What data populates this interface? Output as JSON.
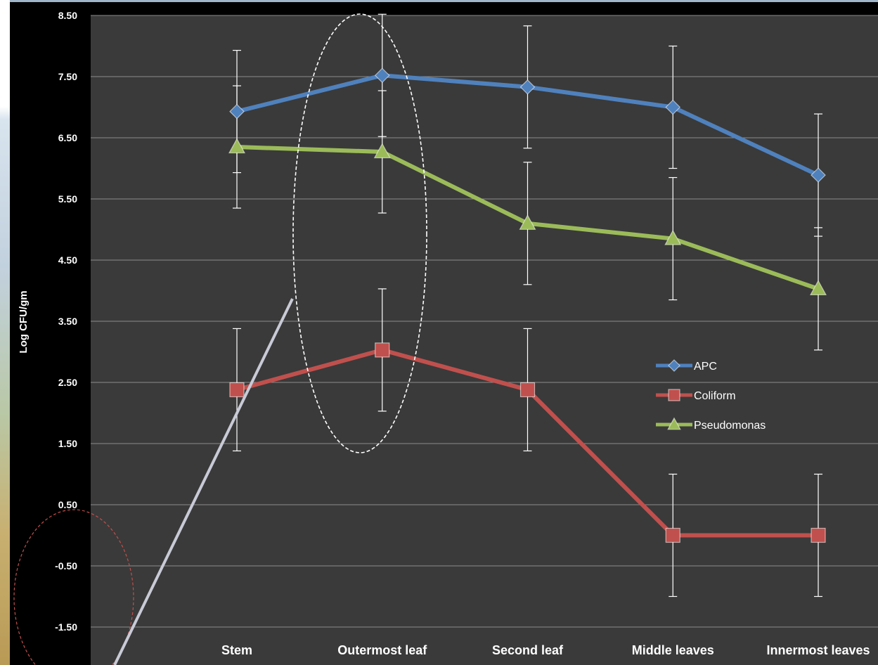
{
  "chart_data": {
    "type": "line",
    "ylabel": "Log CFU/gm",
    "xlabel": "",
    "ylim": [
      -1.5,
      8.5
    ],
    "yticks": [
      "8.50",
      "7.50",
      "6.50",
      "5.50",
      "4.50",
      "3.50",
      "2.50",
      "1.50",
      "0.50",
      "-0.50",
      "-1.50"
    ],
    "categories": [
      "Stem",
      "Outermost leaf",
      "Second  leaf",
      "Middle leaves",
      "Innermost leaves"
    ],
    "grid": true,
    "legend_position": "right",
    "series": [
      {
        "name": "APC",
        "marker": "diamond",
        "color": "#4f81bd",
        "values": [
          6.93,
          7.52,
          7.33,
          7.0,
          5.89
        ],
        "error": [
          1.0,
          1.0,
          1.0,
          1.0,
          1.0
        ]
      },
      {
        "name": "Coliform",
        "marker": "square",
        "color": "#c0504d",
        "values": [
          2.38,
          3.03,
          2.38,
          0.0,
          0.0
        ],
        "error": [
          1.0,
          1.0,
          1.0,
          1.0,
          1.0
        ]
      },
      {
        "name": "Pseudomonas",
        "marker": "triangle",
        "color": "#9bbb59",
        "values": [
          6.35,
          6.27,
          5.1,
          4.85,
          4.03
        ],
        "error": [
          1.0,
          1.0,
          1.0,
          1.0,
          1.0
        ]
      }
    ]
  },
  "colors": {
    "plot_background": "#3a3a3a",
    "grid": "#8c8c8c",
    "error_bars": "#ffffff",
    "highlight_ellipse": "#ffffff",
    "corner_ellipse": "#c0504d",
    "pointer_line": "#c8cad6"
  }
}
